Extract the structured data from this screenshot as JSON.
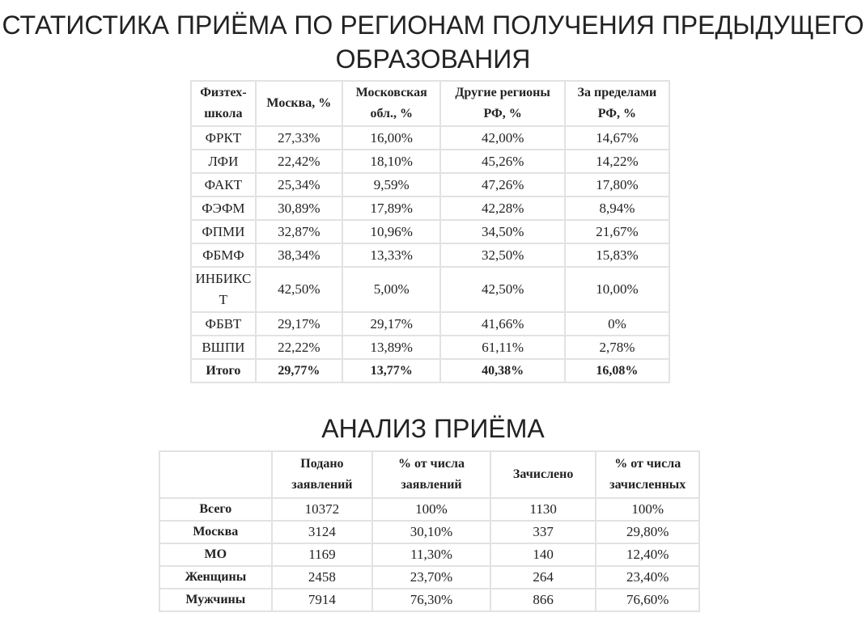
{
  "title1": "СТАТИСТИКА ПРИЁМА ПО РЕГИОНАМ ПОЛУЧЕНИЯ ПРЕДЫДУЩЕГО ОБРАЗОВАНИЯ",
  "table1": {
    "headers": [
      "Физтех-школа",
      "Москва, %",
      "Московская обл., %",
      "Другие регионы РФ, %",
      "За пределами РФ, %"
    ],
    "rows": [
      [
        "ФРКТ",
        "27,33%",
        "16,00%",
        "42,00%",
        "14,67%"
      ],
      [
        "ЛФИ",
        "22,42%",
        "18,10%",
        "45,26%",
        "14,22%"
      ],
      [
        "ФАКТ",
        "25,34%",
        "9,59%",
        "47,26%",
        "17,80%"
      ],
      [
        "ФЭФМ",
        "30,89%",
        "17,89%",
        "42,28%",
        "8,94%"
      ],
      [
        "ФПМИ",
        "32,87%",
        "10,96%",
        "34,50%",
        "21,67%"
      ],
      [
        "ФБМФ",
        "38,34%",
        "13,33%",
        "32,50%",
        "15,83%"
      ],
      [
        "ИНБИКСТ",
        "42,50%",
        "5,00%",
        "42,50%",
        "10,00%"
      ],
      [
        "ФБВТ",
        "29,17%",
        "29,17%",
        "41,66%",
        "0%"
      ],
      [
        "ВШПИ",
        "22,22%",
        "13,89%",
        "61,11%",
        "2,78%"
      ],
      [
        "Итого",
        "29,77%",
        "13,77%",
        "40,38%",
        "16,08%"
      ]
    ]
  },
  "title2": "АНАЛИЗ ПРИЁМА",
  "table2": {
    "headers": [
      "",
      "Подано заявлений",
      "% от числа заявлений",
      "Зачислено",
      "% от числа зачисленных"
    ],
    "rows": [
      [
        "Всего",
        "10372",
        "100%",
        "1130",
        "100%"
      ],
      [
        "Москва",
        "3124",
        "30,10%",
        "337",
        "29,80%"
      ],
      [
        "МО",
        "1169",
        "11,30%",
        "140",
        "12,40%"
      ],
      [
        "Женщины",
        "2458",
        "23,70%",
        "264",
        "23,40%"
      ],
      [
        "Мужчины",
        "7914",
        "76,30%",
        "866",
        "76,60%"
      ]
    ]
  }
}
